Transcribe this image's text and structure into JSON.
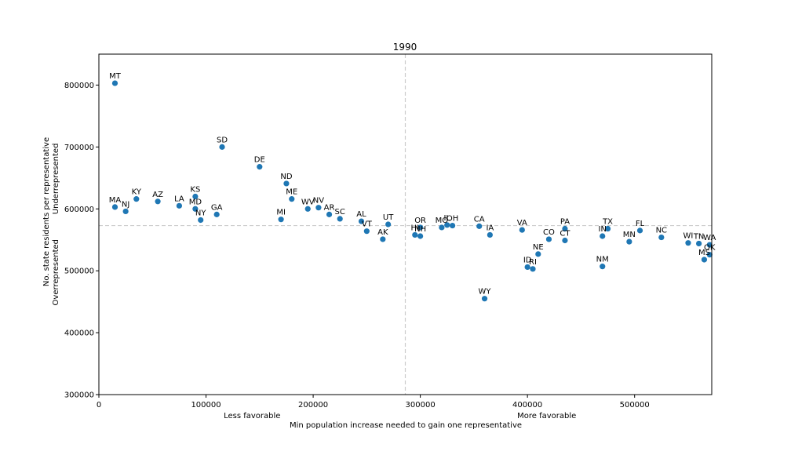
{
  "chart_data": {
    "type": "scatter",
    "title": "1990",
    "xlabel": "Min population increase needed to gain one representative",
    "ylabel_lines": [
      "No. state residents per representative",
      "Overrepresented          Underrepresented"
    ],
    "xlim": [
      0,
      572000
    ],
    "ylim": [
      300000,
      850000
    ],
    "xticks": [
      0,
      100000,
      200000,
      300000,
      400000,
      500000
    ],
    "xtick_labels": [
      "0",
      "100000",
      "200000",
      "300000",
      "400000",
      "500000"
    ],
    "yticks": [
      300000,
      400000,
      500000,
      600000,
      700000,
      800000
    ],
    "ytick_labels": [
      "300000",
      "400000",
      "500000",
      "600000",
      "700000",
      "800000"
    ],
    "x_annotations": [
      {
        "text": "Less favorable",
        "x": 143000
      },
      {
        "text": "More favorable",
        "x": 418000
      }
    ],
    "reference_lines": {
      "vertical_x": 286000,
      "horizontal_y": 573000
    },
    "grid": false,
    "marker_color": "#1f77b4",
    "reference_line_color": "#cccccc",
    "points": [
      {
        "label": "MT",
        "x": 15000,
        "y": 803000
      },
      {
        "label": "MA",
        "x": 15000,
        "y": 603000
      },
      {
        "label": "NJ",
        "x": 25000,
        "y": 596000
      },
      {
        "label": "KY",
        "x": 35000,
        "y": 616000
      },
      {
        "label": "AZ",
        "x": 55000,
        "y": 612000
      },
      {
        "label": "LA",
        "x": 75000,
        "y": 605000
      },
      {
        "label": "KS",
        "x": 90000,
        "y": 620000
      },
      {
        "label": "MD",
        "x": 90000,
        "y": 600000
      },
      {
        "label": "NY",
        "x": 95000,
        "y": 582000
      },
      {
        "label": "GA",
        "x": 110000,
        "y": 591000
      },
      {
        "label": "SD",
        "x": 115000,
        "y": 700000
      },
      {
        "label": "DE",
        "x": 150000,
        "y": 668000
      },
      {
        "label": "MI",
        "x": 170000,
        "y": 583000
      },
      {
        "label": "ND",
        "x": 175000,
        "y": 641000
      },
      {
        "label": "ME",
        "x": 180000,
        "y": 616000
      },
      {
        "label": "WV",
        "x": 195000,
        "y": 600000
      },
      {
        "label": "NV",
        "x": 205000,
        "y": 602000
      },
      {
        "label": "AR",
        "x": 215000,
        "y": 591000
      },
      {
        "label": "SC",
        "x": 225000,
        "y": 584000
      },
      {
        "label": "AL",
        "x": 245000,
        "y": 580000
      },
      {
        "label": "VT",
        "x": 250000,
        "y": 564000
      },
      {
        "label": "AK",
        "x": 265000,
        "y": 551000
      },
      {
        "label": "UT",
        "x": 270000,
        "y": 575000
      },
      {
        "label": "HI",
        "x": 295000,
        "y": 558000
      },
      {
        "label": "NH",
        "x": 300000,
        "y": 556000
      },
      {
        "label": "OR",
        "x": 300000,
        "y": 570000
      },
      {
        "label": "MO",
        "x": 320000,
        "y": 570000
      },
      {
        "label": "IL",
        "x": 325000,
        "y": 574000
      },
      {
        "label": "OH",
        "x": 330000,
        "y": 573000
      },
      {
        "label": "CA",
        "x": 355000,
        "y": 572000
      },
      {
        "label": "WY",
        "x": 360000,
        "y": 455000
      },
      {
        "label": "IA",
        "x": 365000,
        "y": 558000
      },
      {
        "label": "VA",
        "x": 395000,
        "y": 566000
      },
      {
        "label": "ID",
        "x": 400000,
        "y": 506000
      },
      {
        "label": "RI",
        "x": 405000,
        "y": 503000
      },
      {
        "label": "NE",
        "x": 410000,
        "y": 527000
      },
      {
        "label": "CO",
        "x": 420000,
        "y": 551000
      },
      {
        "label": "PA",
        "x": 435000,
        "y": 568000
      },
      {
        "label": "CT",
        "x": 435000,
        "y": 549000
      },
      {
        "label": "IN",
        "x": 470000,
        "y": 556000
      },
      {
        "label": "NM",
        "x": 470000,
        "y": 507000
      },
      {
        "label": "TX",
        "x": 475000,
        "y": 568000
      },
      {
        "label": "MN",
        "x": 495000,
        "y": 547000
      },
      {
        "label": "FL",
        "x": 505000,
        "y": 565000
      },
      {
        "label": "NC",
        "x": 525000,
        "y": 554000
      },
      {
        "label": "WI",
        "x": 550000,
        "y": 545000
      },
      {
        "label": "TN",
        "x": 560000,
        "y": 544000
      },
      {
        "label": "MS",
        "x": 565000,
        "y": 518000
      },
      {
        "label": "WA",
        "x": 570000,
        "y": 542000
      },
      {
        "label": "OK",
        "x": 570000,
        "y": 526000
      }
    ]
  }
}
